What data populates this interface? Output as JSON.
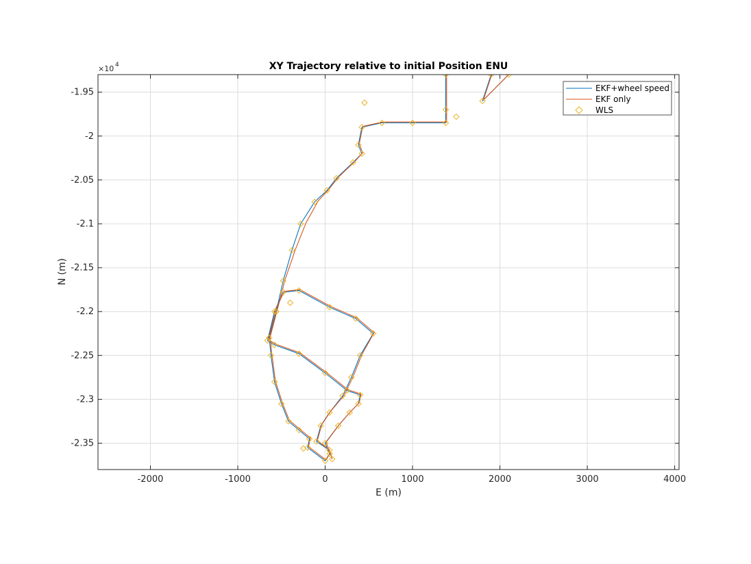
{
  "chart_data": {
    "type": "line",
    "title": "XY Trajectory relative to initial Position ENU",
    "xlabel": "E (m)",
    "ylabel": "N (m)",
    "xlim": [
      -2600,
      4050
    ],
    "ylim": [
      -23800,
      -19300
    ],
    "x_ticks": [
      -2000,
      -1000,
      0,
      1000,
      2000,
      3000,
      4000
    ],
    "y_ticks": [
      -19500,
      -20000,
      -20500,
      -21000,
      -21500,
      -22000,
      -22500,
      -23000,
      -23500
    ],
    "y_tick_labels": [
      "-1.95",
      "-2",
      "-2.05",
      "-2.1",
      "-2.15",
      "-2.2",
      "-2.25",
      "-2.3",
      "-2.35"
    ],
    "y_exponent": {
      "base": "×10",
      "power": "4"
    },
    "grid": true,
    "legend_position": "top-right",
    "series": [
      {
        "name": "EKF+wheel speed",
        "color": "#0072BD",
        "style": "line",
        "points": [
          [
            80,
            -23680
          ],
          [
            50,
            -23580
          ],
          [
            -100,
            -23480
          ],
          [
            -50,
            -23300
          ],
          [
            50,
            -23150
          ],
          [
            200,
            -22960
          ],
          [
            300,
            -22750
          ],
          [
            400,
            -22500
          ],
          [
            550,
            -22250
          ],
          [
            350,
            -22080
          ],
          [
            50,
            -21950
          ],
          [
            -300,
            -21760
          ],
          [
            -480,
            -21780
          ],
          [
            -580,
            -22000
          ],
          [
            -660,
            -22330
          ],
          [
            -580,
            -22380
          ],
          [
            -300,
            -22480
          ],
          [
            0,
            -22700
          ],
          [
            250,
            -22900
          ],
          [
            400,
            -22950
          ],
          [
            380,
            -23050
          ],
          [
            280,
            -23150
          ],
          [
            150,
            -23300
          ],
          [
            0,
            -23500
          ],
          [
            50,
            -23620
          ],
          [
            0,
            -23700
          ],
          [
            -200,
            -23550
          ],
          [
            -180,
            -23450
          ],
          [
            -300,
            -23350
          ],
          [
            -420,
            -23250
          ],
          [
            -500,
            -23050
          ],
          [
            -580,
            -22800
          ],
          [
            -620,
            -22500
          ],
          [
            -640,
            -22300
          ],
          [
            -560,
            -22000
          ],
          [
            -480,
            -21650
          ],
          [
            -380,
            -21300
          ],
          [
            -280,
            -21000
          ],
          [
            -120,
            -20750
          ],
          [
            20,
            -20620
          ],
          [
            130,
            -20480
          ],
          [
            320,
            -20300
          ],
          [
            420,
            -20200
          ],
          [
            380,
            -20100
          ],
          [
            420,
            -19900
          ],
          [
            650,
            -19850
          ],
          [
            1000,
            -19850
          ],
          [
            1380,
            -19850
          ],
          [
            1380,
            -19700
          ],
          [
            1380,
            -19300
          ],
          [
            1900,
            -19300
          ],
          [
            1800,
            -19600
          ],
          [
            2100,
            -19300
          ]
        ]
      },
      {
        "name": "EKF only",
        "color": "#D95319",
        "style": "line",
        "points": [
          [
            80,
            -23680
          ],
          [
            40,
            -23570
          ],
          [
            -90,
            -23470
          ],
          [
            -40,
            -23290
          ],
          [
            60,
            -23140
          ],
          [
            220,
            -22950
          ],
          [
            320,
            -22740
          ],
          [
            420,
            -22490
          ],
          [
            560,
            -22240
          ],
          [
            360,
            -22070
          ],
          [
            60,
            -21940
          ],
          [
            -290,
            -21750
          ],
          [
            -470,
            -21770
          ],
          [
            -570,
            -21990
          ],
          [
            -650,
            -22320
          ],
          [
            -570,
            -22370
          ],
          [
            -290,
            -22470
          ],
          [
            10,
            -22690
          ],
          [
            260,
            -22890
          ],
          [
            410,
            -22940
          ],
          [
            390,
            -23040
          ],
          [
            290,
            -23140
          ],
          [
            160,
            -23290
          ],
          [
            10,
            -23490
          ],
          [
            60,
            -23610
          ],
          [
            10,
            -23690
          ],
          [
            -190,
            -23540
          ],
          [
            -170,
            -23440
          ],
          [
            -290,
            -23340
          ],
          [
            -410,
            -23240
          ],
          [
            -490,
            -23040
          ],
          [
            -570,
            -22790
          ],
          [
            -610,
            -22490
          ],
          [
            -630,
            -22290
          ],
          [
            -550,
            -21990
          ],
          [
            -460,
            -21640
          ],
          [
            -340,
            -21290
          ],
          [
            -220,
            -20990
          ],
          [
            -80,
            -20740
          ],
          [
            40,
            -20610
          ],
          [
            150,
            -20470
          ],
          [
            340,
            -20290
          ],
          [
            430,
            -20190
          ],
          [
            390,
            -20090
          ],
          [
            430,
            -19890
          ],
          [
            660,
            -19840
          ],
          [
            1010,
            -19840
          ],
          [
            1390,
            -19840
          ],
          [
            1390,
            -19690
          ],
          [
            1390,
            -19290
          ],
          [
            1910,
            -19290
          ],
          [
            1810,
            -19590
          ],
          [
            2110,
            -19290
          ]
        ]
      },
      {
        "name": "WLS",
        "color": "#EDB120",
        "style": "marker",
        "points": [
          [
            80,
            -23680
          ],
          [
            50,
            -23580
          ],
          [
            -100,
            -23480
          ],
          [
            -50,
            -23300
          ],
          [
            50,
            -23150
          ],
          [
            200,
            -22960
          ],
          [
            300,
            -22750
          ],
          [
            400,
            -22500
          ],
          [
            550,
            -22250
          ],
          [
            350,
            -22080
          ],
          [
            50,
            -21950
          ],
          [
            -300,
            -21760
          ],
          [
            -480,
            -21780
          ],
          [
            -580,
            -22000
          ],
          [
            -660,
            -22330
          ],
          [
            -580,
            -22380
          ],
          [
            -300,
            -22480
          ],
          [
            0,
            -22700
          ],
          [
            250,
            -22900
          ],
          [
            400,
            -22950
          ],
          [
            380,
            -23050
          ],
          [
            280,
            -23150
          ],
          [
            150,
            -23300
          ],
          [
            0,
            -23500
          ],
          [
            50,
            -23620
          ],
          [
            0,
            -23700
          ],
          [
            -200,
            -23550
          ],
          [
            -180,
            -23450
          ],
          [
            -300,
            -23350
          ],
          [
            -420,
            -23250
          ],
          [
            -500,
            -23050
          ],
          [
            -580,
            -22800
          ],
          [
            -620,
            -22500
          ],
          [
            -640,
            -22300
          ],
          [
            -560,
            -22000
          ],
          [
            -480,
            -21650
          ],
          [
            -380,
            -21300
          ],
          [
            -280,
            -21000
          ],
          [
            -120,
            -20750
          ],
          [
            20,
            -20620
          ],
          [
            130,
            -20480
          ],
          [
            320,
            -20300
          ],
          [
            420,
            -20200
          ],
          [
            380,
            -20100
          ],
          [
            420,
            -19900
          ],
          [
            650,
            -19850
          ],
          [
            1000,
            -19850
          ],
          [
            1380,
            -19850
          ],
          [
            1380,
            -19700
          ],
          [
            1380,
            -19300
          ],
          [
            1900,
            -19300
          ],
          [
            1800,
            -19600
          ],
          [
            2100,
            -19300
          ],
          [
            -250,
            -23560
          ],
          [
            1500,
            -19780
          ],
          [
            450,
            -19620
          ],
          [
            -400,
            -21900
          ]
        ]
      }
    ]
  }
}
